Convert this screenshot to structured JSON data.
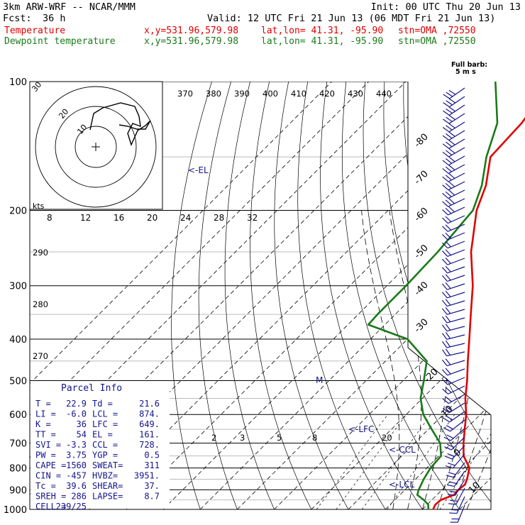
{
  "header": {
    "model": "3km ARW-WRF -- NCAR/MMM",
    "init": "Init: 00 UTC Thu 20 Jun 13",
    "fcst_label": "Fcst:",
    "fcst_value": "36 h",
    "valid": "Valid: 12 UTC Fri 21 Jun 13 (06 MDT Fri 21 Jun 13)",
    "temp_label": "Temperature",
    "dew_label": "Dewpoint temperature",
    "xy": "x,y=531.96,579.98",
    "latlon": "lat,lon= 41.31, -95.90",
    "stn": "stn=OMA ,72550"
  },
  "colors": {
    "temperature": "#e00000",
    "dewpoint": "#1a7a1a",
    "parcel": "#14148c",
    "axes": "#000000"
  },
  "chart_data": {
    "type": "line",
    "title": "",
    "ylabel": "",
    "xlabel": "",
    "y_scale": "log-pressure",
    "ylim": [
      1000,
      100
    ],
    "pressure_ticks": [
      100,
      200,
      300,
      400,
      500,
      600,
      700,
      800,
      900,
      1000
    ],
    "isotherm_labels": [
      -80,
      -70,
      -60,
      -50,
      -40,
      -30,
      -20,
      -10,
      0,
      10,
      20,
      30,
      40
    ],
    "theta_labels": [
      370,
      380,
      390,
      400,
      410,
      420,
      430,
      440
    ],
    "mixing_ratio_labels": [
      2,
      3,
      5,
      8,
      20
    ],
    "theta_e_labels": [
      290,
      280,
      270
    ],
    "series": [
      {
        "name": "Temperature",
        "points": [
          [
            1000,
            22.9
          ],
          [
            975,
            22.2
          ],
          [
            950,
            22.4
          ],
          [
            925,
            24.6
          ],
          [
            900,
            24.4
          ],
          [
            875,
            24.8
          ],
          [
            850,
            23.9
          ],
          [
            800,
            21.5
          ],
          [
            750,
            16.7
          ],
          [
            700,
            13.2
          ],
          [
            650,
            9.8
          ],
          [
            600,
            6.2
          ],
          [
            550,
            1.6
          ],
          [
            500,
            -2.7
          ],
          [
            450,
            -7.8
          ],
          [
            400,
            -13.3
          ],
          [
            350,
            -19.6
          ],
          [
            300,
            -26.8
          ],
          [
            250,
            -36.4
          ],
          [
            200,
            -46.1
          ],
          [
            175,
            -50.3
          ],
          [
            150,
            -56.8
          ],
          [
            125,
            -57.5
          ],
          [
            100,
            -60.5
          ]
        ]
      },
      {
        "name": "Dewpoint temperature",
        "points": [
          [
            1000,
            21.6
          ],
          [
            975,
            20.3
          ],
          [
            950,
            17.8
          ],
          [
            925,
            14.7
          ],
          [
            900,
            13.7
          ],
          [
            850,
            12.2
          ],
          [
            800,
            11.0
          ],
          [
            750,
            10.6
          ],
          [
            700,
            6.9
          ],
          [
            650,
            0.9
          ],
          [
            600,
            -5.4
          ],
          [
            550,
            -10.5
          ],
          [
            500,
            -14.4
          ],
          [
            450,
            -18.9
          ],
          [
            400,
            -30.0
          ],
          [
            370,
            -44.5
          ],
          [
            350,
            -44.8
          ],
          [
            300,
            -44.8
          ],
          [
            250,
            -45.4
          ],
          [
            200,
            -47.1
          ],
          [
            175,
            -51.4
          ],
          [
            150,
            -57.9
          ],
          [
            125,
            -64.1
          ],
          [
            100,
            -75.8
          ]
        ]
      }
    ],
    "markers": [
      {
        "label": "<-EL",
        "pressure": 161
      },
      {
        "label": "<-LFC",
        "pressure": 649
      },
      {
        "label": "<-CCL",
        "pressure": 728
      },
      {
        "label": "<-LCL",
        "pressure": 874
      },
      {
        "label": "M",
        "pressure": 500
      }
    ],
    "hodograph": {
      "units_label": "kts",
      "ring_labels": [
        "10",
        "20",
        "30"
      ],
      "speed_ticks": [
        "8",
        "12",
        "16",
        "20",
        "24",
        "28",
        "32"
      ]
    },
    "wind_barb_legend": {
      "line1": "Full barb:",
      "line2": "5 m s"
    }
  },
  "parcel_info": {
    "title": "Parcel Info",
    "rows": [
      [
        "T =",
        "22.9",
        "Td =",
        "21.6"
      ],
      [
        "LI =",
        "-6.0",
        "LCL =",
        "874."
      ],
      [
        "K =",
        "36",
        "LFC =",
        "649."
      ],
      [
        "TT =",
        "54",
        "EL =",
        "161."
      ],
      [
        "SVI =",
        "-3.3",
        "CCL =",
        "728."
      ],
      [
        "PW =",
        "3.75",
        "YGP =",
        "0.5"
      ],
      [
        "CAPE =",
        "1560",
        "SWEAT=",
        "311"
      ],
      [
        "CIN =",
        "-457",
        "HVBZ=",
        "3951."
      ],
      [
        "Tc =",
        "39.6",
        "SHEAR=",
        "37."
      ],
      [
        "SREH =",
        "286",
        "LAPSE=",
        "8.7"
      ],
      [
        "CELL =",
        "239/25",
        "",
        ""
      ]
    ]
  }
}
